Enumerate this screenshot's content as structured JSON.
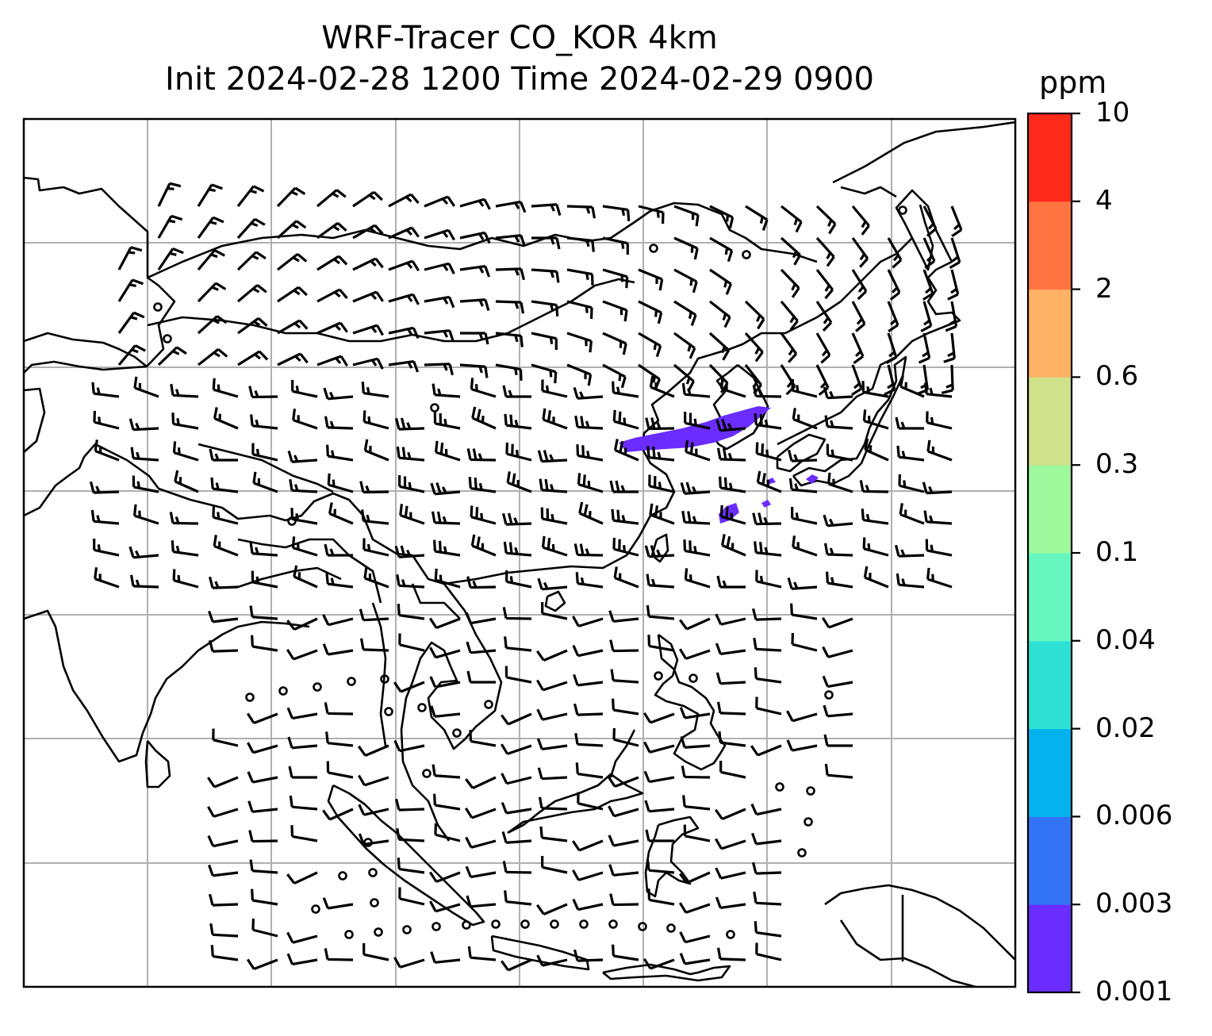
{
  "title": {
    "line1": "WRF-Tracer CO_KOR 4km",
    "line2": "Init 2024-02-28 1200 Time 2024-02-29 0900"
  },
  "colorbar": {
    "unit": "ppm",
    "ticks": [
      "0.001",
      "0.003",
      "0.006",
      "0.02",
      "0.04",
      "0.1",
      "0.3",
      "0.6",
      "2",
      "4",
      "10"
    ],
    "colors": [
      "#6a2cff",
      "#3374f5",
      "#04b2ee",
      "#2fe0d4",
      "#66f7c1",
      "#9ef99c",
      "#cfe18a",
      "#fdb266",
      "#ff7440",
      "#ff2a1a"
    ]
  },
  "map": {
    "gridlines": true,
    "tracer_color": "#6a2cff",
    "coast_color": "#000000",
    "grid_color": "#b0b0b0"
  }
}
